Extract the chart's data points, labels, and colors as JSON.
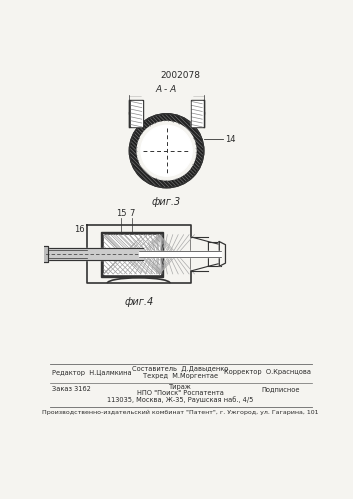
{
  "patent_number": "2002078",
  "page_bg": "#f5f4f0",
  "fig3_label": "А - А",
  "fig3_caption": "фиг.3",
  "fig3_ref": "14",
  "fig4_caption": "фиг.4",
  "fig4_ref1": "15",
  "fig4_ref2": "7",
  "fig4_ref3": "16",
  "footer_line1_col1": "Редактор  Н.Цалмкина",
  "footer_line1_col2_1": "Составитель  Д.Давыденко",
  "footer_line1_col2_2": "Техред  М.Моргентае",
  "footer_line1_col3": "Корректор  О.Краснцова",
  "footer_line2_col1": "Заказ 3162",
  "footer_line2_col2_1": "Тираж",
  "footer_line2_col2_2": "НПО \"Поиск\" Роспатента",
  "footer_line2_col2_3": "113035, Москва, Ж-35, Раушская наб., 4/5",
  "footer_line2_col3": "Подписное",
  "footer_bottom": "Производственно-издательский комбинат \"Патент\", г. Ужгород, ул. Гагарина, 101",
  "tc": "#2a2a2a",
  "lc": "#333333"
}
